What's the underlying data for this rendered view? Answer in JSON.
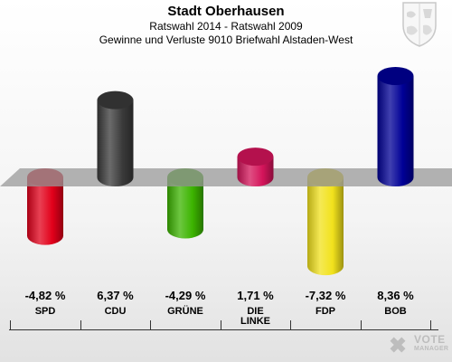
{
  "header": {
    "title": "Stadt Oberhausen",
    "subtitle1": "Ratswahl 2014 - Ratswahl 2009",
    "subtitle2": "Gewinne und Verluste 9010 Briefwahl Alstaden-West"
  },
  "logo": {
    "line1": "VOTE",
    "line2": "MANAGER"
  },
  "chart_data": {
    "type": "bar",
    "title": "Stadt Oberhausen",
    "subtitle": "Ratswahl 2014 - Ratswahl 2009 / Gewinne und Verluste 9010 Briefwahl Alstaden-West",
    "unit": "%",
    "categories": [
      "SPD",
      "CDU",
      "GRÜNE",
      "DIE LINKE",
      "FDP",
      "BOB"
    ],
    "category_labels": [
      "SPD",
      "CDU",
      "GRÜNE",
      "DIE\nLINKE",
      "FDP",
      "BOB"
    ],
    "values": [
      -4.82,
      6.37,
      -4.29,
      1.71,
      -7.32,
      8.36
    ],
    "value_labels": [
      "-4,82 %",
      "6,37 %",
      "-4,29 %",
      "1,71 %",
      "-7,32 %",
      "8,36 %"
    ],
    "colors": [
      "#e2001a",
      "#3a3a3a",
      "#3cb400",
      "#d4145a",
      "#f2e21c",
      "#000096"
    ],
    "grid": false,
    "legend": "none"
  }
}
